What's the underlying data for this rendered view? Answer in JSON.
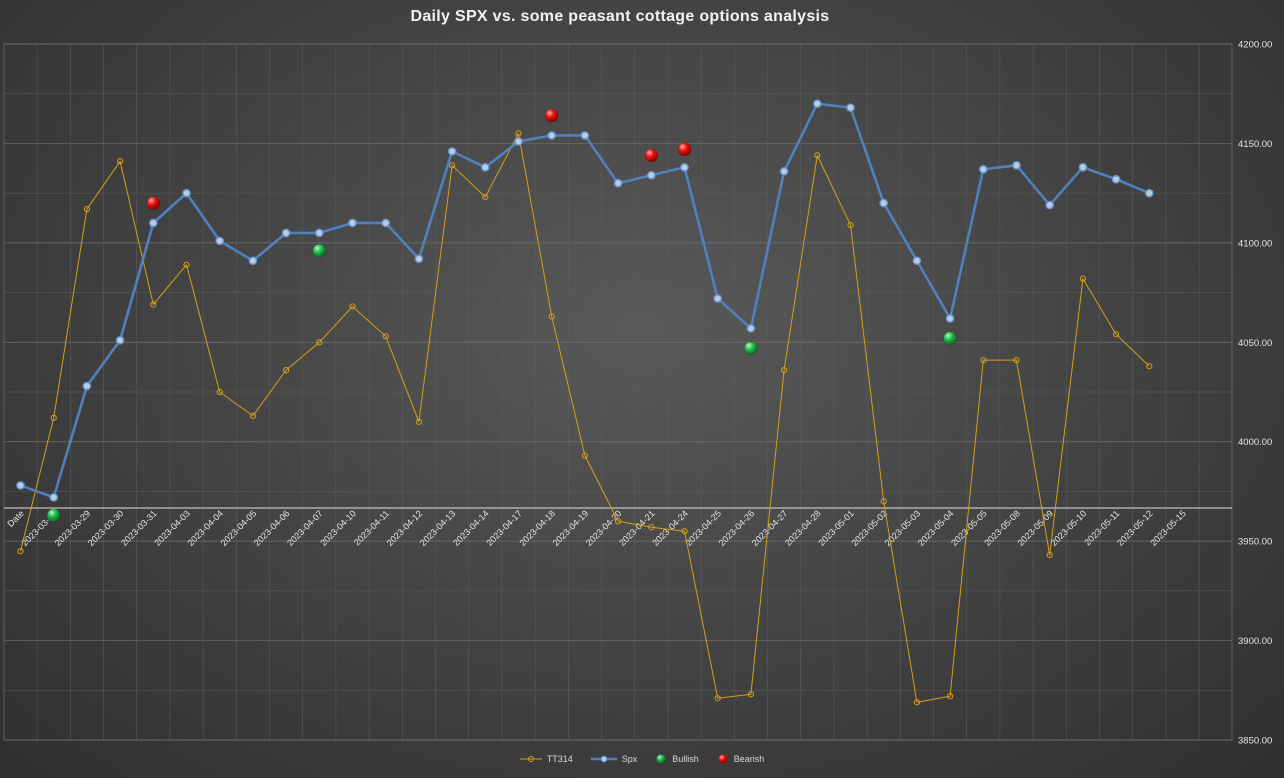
{
  "chart_data": {
    "type": "line",
    "title": "Daily SPX vs. some peasant cottage options analysis",
    "xlabel": "",
    "ylabel": "",
    "ylim": [
      3850,
      4200
    ],
    "y_ticks": [
      "3850.00",
      "3900.00",
      "3950.00",
      "4000.00",
      "4050.00",
      "4100.00",
      "4150.00",
      "4200.00"
    ],
    "y_axis_side": "right",
    "grid": true,
    "legend_position": "bottom",
    "categories": [
      "Date",
      "2023-03-28",
      "2023-03-29",
      "2023-03-30",
      "2023-03-31",
      "2023-04-03",
      "2023-04-04",
      "2023-04-05",
      "2023-04-06",
      "2023-04-07",
      "2023-04-10",
      "2023-04-11",
      "2023-04-12",
      "2023-04-13",
      "2023-04-14",
      "2023-04-17",
      "2023-04-18",
      "2023-04-19",
      "2023-04-20",
      "2023-04-21",
      "2023-04-24",
      "2023-04-25",
      "2023-04-26",
      "2023-04-27",
      "2023-04-28",
      "2023-05-01",
      "2023-05-02",
      "2023-05-03",
      "2023-05-04",
      "2023-05-05",
      "2023-05-08",
      "2023-05-09",
      "2023-05-10",
      "2023-05-11",
      "2023-05-12",
      "2023-05-15"
    ],
    "series": [
      {
        "name": "TT314",
        "type": "line",
        "color": "#d4a017",
        "values": [
          3945,
          4012,
          4117,
          4141,
          4069,
          4089,
          4025,
          4013,
          4036,
          4050,
          4068,
          4053,
          4010,
          4139,
          4123,
          4155,
          4063,
          3993,
          3960,
          3957,
          3955,
          3871,
          3873,
          4036,
          4144,
          4109,
          3970,
          3869,
          3872,
          4041,
          4041,
          3943,
          4082,
          4054,
          4038,
          null
        ]
      },
      {
        "name": "Spx",
        "type": "line",
        "color": "#4f81bd",
        "values": [
          3978,
          3972,
          4028,
          4051,
          4110,
          4125,
          4101,
          4091,
          4105,
          4105,
          4110,
          4110,
          4092,
          4146,
          4138,
          4151,
          4154,
          4154,
          4130,
          4134,
          4138,
          4072,
          4057,
          4136,
          4170,
          4168,
          4120,
          4091,
          4062,
          4137,
          4139,
          4119,
          4138,
          4132,
          4125,
          null
        ]
      },
      {
        "name": "Bullish",
        "type": "marker",
        "color": "#21b04b",
        "points": [
          {
            "x": "2023-03-28",
            "y": 3963
          },
          {
            "x": "2023-04-07",
            "y": 4096
          },
          {
            "x": "2023-04-26",
            "y": 4047
          },
          {
            "x": "2023-05-04",
            "y": 4052
          }
        ]
      },
      {
        "name": "Bearish",
        "type": "marker",
        "color": "#e01010",
        "points": [
          {
            "x": "2023-03-31",
            "y": 4120
          },
          {
            "x": "2023-04-18",
            "y": 4164
          },
          {
            "x": "2023-04-21",
            "y": 4144
          },
          {
            "x": "2023-04-24",
            "y": 4147
          }
        ]
      }
    ]
  }
}
